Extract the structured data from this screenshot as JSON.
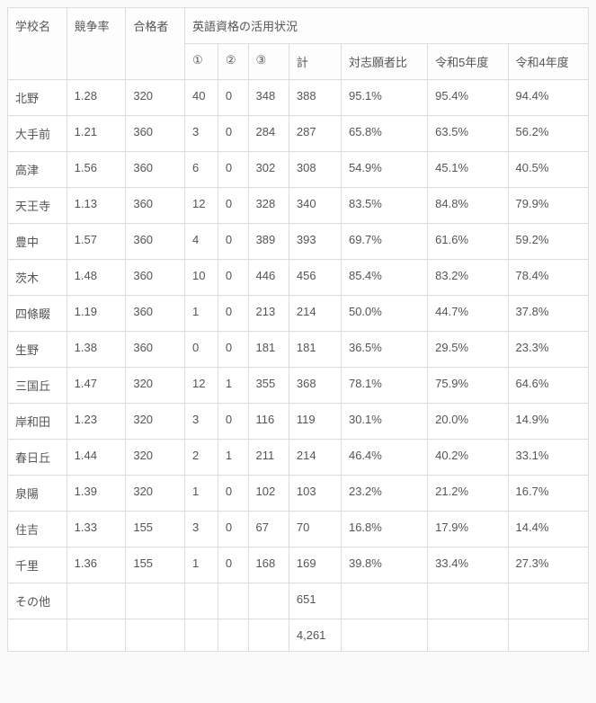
{
  "headers": {
    "school": "学校名",
    "ratio": "競争率",
    "pass": "合格者",
    "eng_group": "英語資格の活用状況",
    "c1": "①",
    "c2": "②",
    "c3": "③",
    "total": "計",
    "vs_applicants": "対志願者比",
    "reiwa5": "令和5年度",
    "reiwa4": "令和4年度"
  },
  "rows": [
    {
      "school": "北野",
      "ratio": "1.28",
      "pass": "320",
      "c1": "40",
      "c2": "0",
      "c3": "348",
      "total": "388",
      "vs": "95.1%",
      "r5": "95.4%",
      "r4": "94.4%"
    },
    {
      "school": "大手前",
      "ratio": "1.21",
      "pass": "360",
      "c1": "3",
      "c2": "0",
      "c3": "284",
      "total": "287",
      "vs": "65.8%",
      "r5": "63.5%",
      "r4": "56.2%"
    },
    {
      "school": "高津",
      "ratio": "1.56",
      "pass": "360",
      "c1": "6",
      "c2": "0",
      "c3": "302",
      "total": "308",
      "vs": "54.9%",
      "r5": "45.1%",
      "r4": "40.5%"
    },
    {
      "school": "天王寺",
      "ratio": "1.13",
      "pass": "360",
      "c1": "12",
      "c2": "0",
      "c3": "328",
      "total": "340",
      "vs": "83.5%",
      "r5": "84.8%",
      "r4": "79.9%"
    },
    {
      "school": "豊中",
      "ratio": "1.57",
      "pass": "360",
      "c1": "4",
      "c2": "0",
      "c3": "389",
      "total": "393",
      "vs": "69.7%",
      "r5": "61.6%",
      "r4": "59.2%"
    },
    {
      "school": "茨木",
      "ratio": "1.48",
      "pass": "360",
      "c1": "10",
      "c2": "0",
      "c3": "446",
      "total": "456",
      "vs": "85.4%",
      "r5": "83.2%",
      "r4": "78.4%"
    },
    {
      "school": "四條畷",
      "ratio": "1.19",
      "pass": "360",
      "c1": "1",
      "c2": "0",
      "c3": "213",
      "total": "214",
      "vs": "50.0%",
      "r5": "44.7%",
      "r4": "37.8%"
    },
    {
      "school": "生野",
      "ratio": "1.38",
      "pass": "360",
      "c1": "0",
      "c2": "0",
      "c3": "181",
      "total": "181",
      "vs": "36.5%",
      "r5": "29.5%",
      "r4": "23.3%"
    },
    {
      "school": "三国丘",
      "ratio": "1.47",
      "pass": "320",
      "c1": "12",
      "c2": "1",
      "c3": "355",
      "total": "368",
      "vs": "78.1%",
      "r5": "75.9%",
      "r4": "64.6%"
    },
    {
      "school": "岸和田",
      "ratio": "1.23",
      "pass": "320",
      "c1": "3",
      "c2": "0",
      "c3": "116",
      "total": "119",
      "vs": "30.1%",
      "r5": "20.0%",
      "r4": "14.9%"
    },
    {
      "school": "春日丘",
      "ratio": "1.44",
      "pass": "320",
      "c1": "2",
      "c2": "1",
      "c3": "211",
      "total": "214",
      "vs": "46.4%",
      "r5": "40.2%",
      "r4": "33.1%"
    },
    {
      "school": "泉陽",
      "ratio": "1.39",
      "pass": "320",
      "c1": "1",
      "c2": "0",
      "c3": "102",
      "total": "103",
      "vs": "23.2%",
      "r5": "21.2%",
      "r4": "16.7%"
    },
    {
      "school": "住吉",
      "ratio": "1.33",
      "pass": "155",
      "c1": "3",
      "c2": "0",
      "c3": "67",
      "total": "70",
      "vs": "16.8%",
      "r5": "17.9%",
      "r4": "14.4%"
    },
    {
      "school": "千里",
      "ratio": "1.36",
      "pass": "155",
      "c1": "1",
      "c2": "0",
      "c3": "168",
      "total": "169",
      "vs": "39.8%",
      "r5": "33.4%",
      "r4": "27.3%"
    },
    {
      "school": "その他",
      "ratio": "",
      "pass": "",
      "c1": "",
      "c2": "",
      "c3": "",
      "total": "651",
      "vs": "",
      "r5": "",
      "r4": ""
    },
    {
      "school": "",
      "ratio": "",
      "pass": "",
      "c1": "",
      "c2": "",
      "c3": "",
      "total": "4,261",
      "vs": "",
      "r5": "",
      "r4": ""
    }
  ]
}
